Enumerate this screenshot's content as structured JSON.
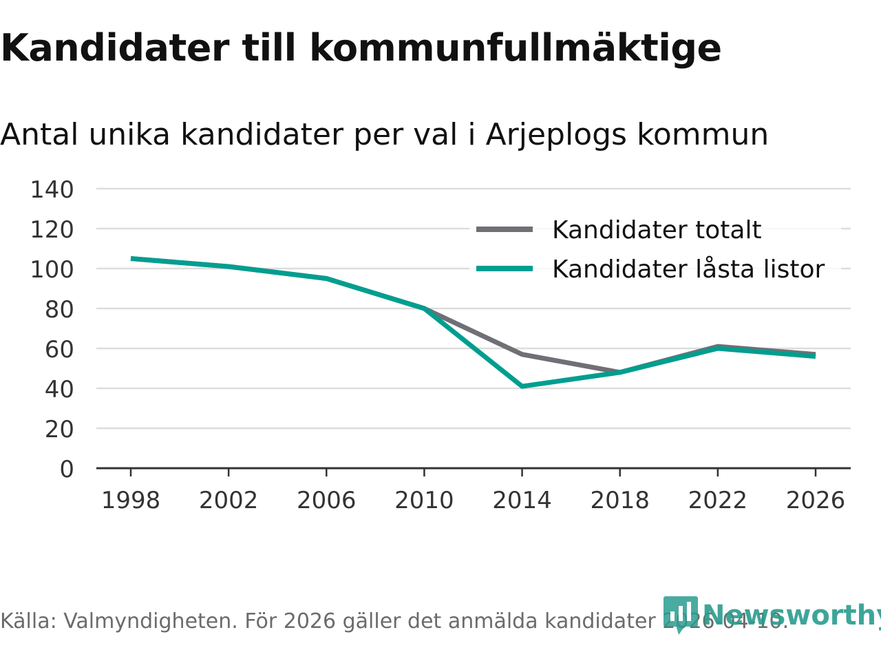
{
  "title": "Kandidater till kommunfullmäktige",
  "subtitle": "Antal unika kandidater per val i Arjeplogs kommun",
  "source": "Källa: Valmyndigheten. För 2026 gäller det anmälda kandidater 2026-04-10.",
  "brand": "Newsworthy",
  "colors": {
    "totalt": "#706f75",
    "lasta": "#009e8f",
    "grid": "#dddddd",
    "axis": "#333333",
    "brand": "#2a9c8f"
  },
  "chart_data": {
    "type": "line",
    "x": [
      "1998",
      "2002",
      "2006",
      "2010",
      "2014",
      "2018",
      "2022",
      "2026"
    ],
    "series": [
      {
        "name": "Kandidater totalt",
        "color": "#706f75",
        "values": [
          105,
          101,
          95,
          80,
          57,
          48,
          61,
          57
        ]
      },
      {
        "name": "Kandidater låsta listor",
        "color": "#009e8f",
        "values": [
          105,
          101,
          95,
          80,
          41,
          48,
          60,
          56
        ]
      }
    ],
    "yticks": [
      "0",
      "20",
      "40",
      "60",
      "80",
      "100",
      "120",
      "140"
    ],
    "ylim": [
      0,
      140
    ],
    "grid": true,
    "legend_position": "top-right",
    "title": "Kandidater till kommunfullmäktige",
    "subtitle": "Antal unika kandidater per val i Arjeplogs kommun"
  }
}
